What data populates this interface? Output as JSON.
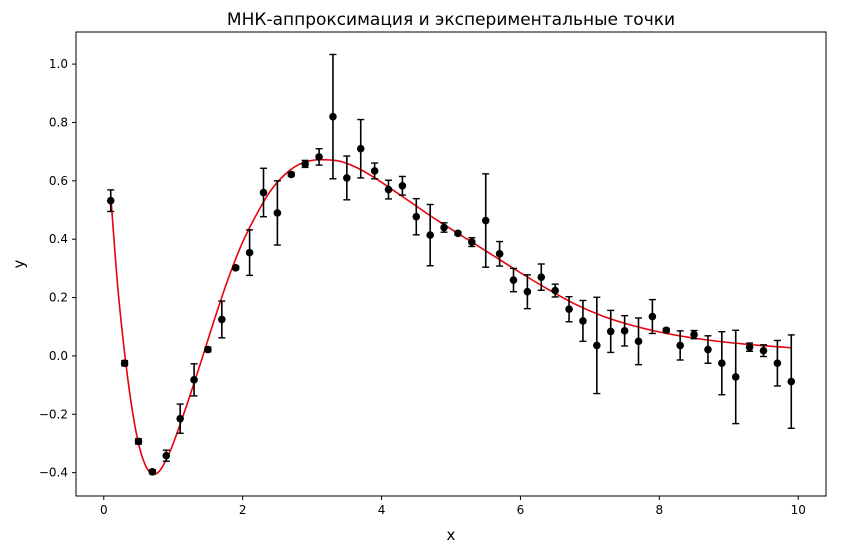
{
  "chart_data": {
    "type": "scatter",
    "title": "МНК-аппроксимация и экспериментальные точки",
    "xlabel": "x",
    "ylabel": "y",
    "xlim": [
      -0.4,
      10.4
    ],
    "ylim": [
      -0.48,
      1.11
    ],
    "xticks": [
      0,
      2,
      4,
      6,
      8,
      10
    ],
    "xtick_labels": [
      "0",
      "2",
      "4",
      "6",
      "8",
      "10"
    ],
    "yticks": [
      -0.4,
      -0.2,
      0.0,
      0.2,
      0.4,
      0.6,
      0.8,
      1.0
    ],
    "ytick_labels": [
      "−0.4",
      "−0.2",
      "0.0",
      "0.2",
      "0.4",
      "0.6",
      "0.8",
      "1.0"
    ],
    "grid": false,
    "legend": false,
    "series": [
      {
        "kind": "errorbar",
        "color": "#000000",
        "points": [
          {
            "x": 0.1,
            "y": 0.532,
            "err": 0.037
          },
          {
            "x": 0.3,
            "y": -0.025,
            "err": 0.009
          },
          {
            "x": 0.5,
            "y": -0.293,
            "err": 0.009
          },
          {
            "x": 0.7,
            "y": -0.397,
            "err": 0.007
          },
          {
            "x": 0.9,
            "y": -0.342,
            "err": 0.019
          },
          {
            "x": 1.1,
            "y": -0.215,
            "err": 0.05
          },
          {
            "x": 1.3,
            "y": -0.082,
            "err": 0.055
          },
          {
            "x": 1.5,
            "y": 0.022,
            "err": 0.008
          },
          {
            "x": 1.7,
            "y": 0.125,
            "err": 0.063
          },
          {
            "x": 1.9,
            "y": 0.302,
            "err": 0.006
          },
          {
            "x": 2.1,
            "y": 0.354,
            "err": 0.078
          },
          {
            "x": 2.3,
            "y": 0.56,
            "err": 0.083
          },
          {
            "x": 2.5,
            "y": 0.49,
            "err": 0.11
          },
          {
            "x": 2.7,
            "y": 0.622,
            "err": 0.006
          },
          {
            "x": 2.9,
            "y": 0.658,
            "err": 0.012
          },
          {
            "x": 3.1,
            "y": 0.682,
            "err": 0.028
          },
          {
            "x": 3.3,
            "y": 0.82,
            "err": 0.213
          },
          {
            "x": 3.5,
            "y": 0.61,
            "err": 0.075
          },
          {
            "x": 3.7,
            "y": 0.71,
            "err": 0.1
          },
          {
            "x": 3.9,
            "y": 0.634,
            "err": 0.027
          },
          {
            "x": 4.1,
            "y": 0.57,
            "err": 0.032
          },
          {
            "x": 4.3,
            "y": 0.583,
            "err": 0.032
          },
          {
            "x": 4.5,
            "y": 0.477,
            "err": 0.062
          },
          {
            "x": 4.7,
            "y": 0.414,
            "err": 0.105
          },
          {
            "x": 4.9,
            "y": 0.44,
            "err": 0.016
          },
          {
            "x": 5.1,
            "y": 0.42,
            "err": 0.006
          },
          {
            "x": 5.3,
            "y": 0.39,
            "err": 0.015
          },
          {
            "x": 5.5,
            "y": 0.464,
            "err": 0.16
          },
          {
            "x": 5.7,
            "y": 0.35,
            "err": 0.042
          },
          {
            "x": 5.9,
            "y": 0.26,
            "err": 0.04
          },
          {
            "x": 6.1,
            "y": 0.22,
            "err": 0.058
          },
          {
            "x": 6.3,
            "y": 0.27,
            "err": 0.045
          },
          {
            "x": 6.5,
            "y": 0.224,
            "err": 0.022
          },
          {
            "x": 6.7,
            "y": 0.16,
            "err": 0.043
          },
          {
            "x": 6.9,
            "y": 0.12,
            "err": 0.07
          },
          {
            "x": 7.1,
            "y": 0.036,
            "err": 0.165
          },
          {
            "x": 7.3,
            "y": 0.084,
            "err": 0.072
          },
          {
            "x": 7.5,
            "y": 0.086,
            "err": 0.052
          },
          {
            "x": 7.7,
            "y": 0.05,
            "err": 0.08
          },
          {
            "x": 7.9,
            "y": 0.135,
            "err": 0.058
          },
          {
            "x": 8.1,
            "y": 0.088,
            "err": 0.006
          },
          {
            "x": 8.3,
            "y": 0.036,
            "err": 0.05
          },
          {
            "x": 8.5,
            "y": 0.073,
            "err": 0.014
          },
          {
            "x": 8.7,
            "y": 0.022,
            "err": 0.047
          },
          {
            "x": 8.9,
            "y": -0.025,
            "err": 0.108
          },
          {
            "x": 9.1,
            "y": -0.072,
            "err": 0.16
          },
          {
            "x": 9.3,
            "y": 0.03,
            "err": 0.014
          },
          {
            "x": 9.5,
            "y": 0.018,
            "err": 0.02
          },
          {
            "x": 9.7,
            "y": -0.025,
            "err": 0.078
          },
          {
            "x": 9.9,
            "y": -0.088,
            "err": 0.16
          }
        ]
      },
      {
        "kind": "line",
        "color": "#e8000b",
        "x": [
          0.1,
          0.2,
          0.3,
          0.4,
          0.5,
          0.6,
          0.7,
          0.8,
          0.9,
          1.0,
          1.2,
          1.4,
          1.6,
          1.8,
          2.0,
          2.2,
          2.4,
          2.6,
          2.8,
          3.0,
          3.2,
          3.4,
          3.6,
          3.8,
          4.0,
          4.4,
          4.8,
          5.2,
          5.6,
          6.0,
          6.4,
          6.8,
          7.2,
          7.6,
          8.0,
          8.5,
          9.0,
          9.5,
          9.9
        ],
        "y": [
          0.55,
          0.24,
          0.01,
          -0.17,
          -0.3,
          -0.375,
          -0.405,
          -0.395,
          -0.355,
          -0.3,
          -0.165,
          -0.02,
          0.13,
          0.27,
          0.39,
          0.485,
          0.565,
          0.62,
          0.655,
          0.67,
          0.672,
          0.667,
          0.65,
          0.625,
          0.595,
          0.53,
          0.465,
          0.405,
          0.345,
          0.285,
          0.228,
          0.176,
          0.135,
          0.105,
          0.082,
          0.061,
          0.046,
          0.035,
          0.028
        ]
      }
    ]
  }
}
